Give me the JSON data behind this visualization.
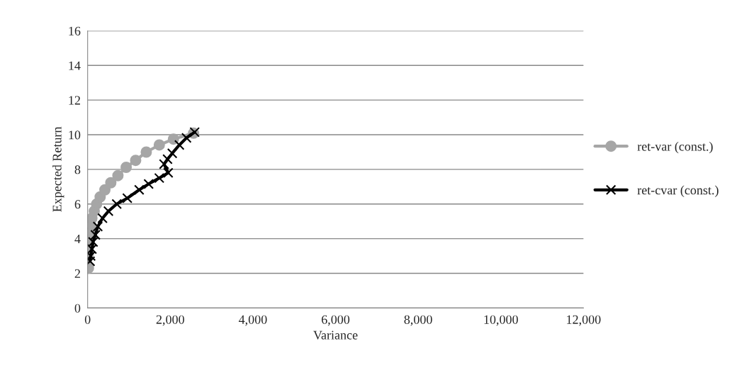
{
  "chart_data": {
    "type": "line",
    "xlabel": "Variance",
    "ylabel": "Expected Return",
    "xlim": [
      0,
      12000
    ],
    "xticks": [
      {
        "value": 0,
        "label": "0"
      },
      {
        "value": 2000,
        "label": "2,000"
      },
      {
        "value": 4000,
        "label": "4,000"
      },
      {
        "value": 6000,
        "label": "6,000"
      },
      {
        "value": 8000,
        "label": "8,000"
      },
      {
        "value": 10000,
        "label": "10,000"
      },
      {
        "value": 12000,
        "label": "12,000"
      }
    ],
    "ylim": [
      0,
      16
    ],
    "yticks": [
      0,
      2,
      4,
      6,
      8,
      10,
      12,
      14,
      16
    ],
    "grid": "y",
    "legend": "right",
    "series": [
      {
        "name": "ret-var (const.)",
        "color": "#a6a6a6",
        "marker": "circle",
        "x": [
          20,
          14,
          23,
          34,
          46,
          74,
          103,
          160,
          217,
          303,
          418,
          561,
          733,
          933,
          1162,
          1419,
          1734,
          2077,
          2563
        ],
        "values": [
          2.3,
          3.13,
          3.54,
          3.95,
          4.36,
          4.77,
          5.18,
          5.59,
          6.0,
          6.41,
          6.82,
          7.23,
          7.64,
          8.12,
          8.52,
          9.0,
          9.41,
          9.75,
          10.09
        ]
      },
      {
        "name": "ret-cvar (const.)",
        "color": "#000000",
        "marker": "cross",
        "x": [
          60,
          74,
          103,
          132,
          189,
          246,
          360,
          503,
          704,
          961,
          1248,
          1476,
          1734,
          1950,
          1850,
          1934,
          2048,
          2220,
          2392,
          2590
        ],
        "values": [
          2.7,
          3.0,
          3.4,
          3.81,
          4.22,
          4.7,
          5.18,
          5.59,
          6.0,
          6.34,
          6.82,
          7.16,
          7.5,
          7.8,
          8.3,
          8.59,
          8.93,
          9.41,
          9.82,
          10.15
        ]
      }
    ]
  }
}
